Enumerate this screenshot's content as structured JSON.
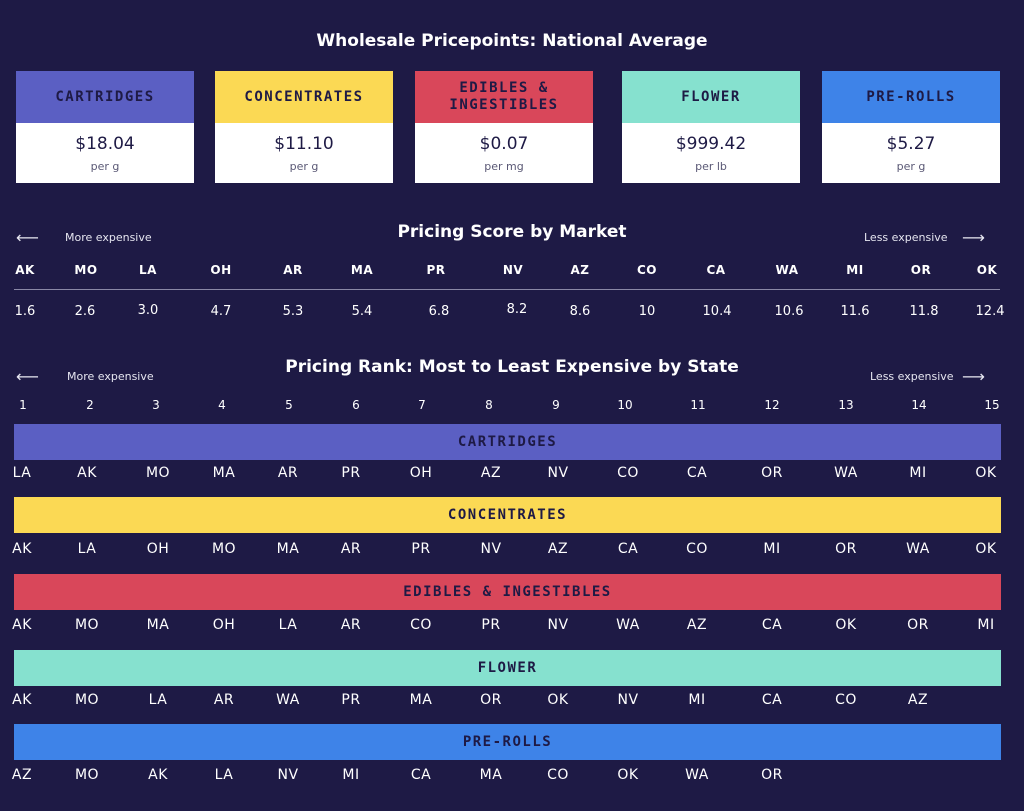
{
  "colors": {
    "background": "#1e1a45",
    "cartridges": "#5b5fc3",
    "concentrates": "#fbd954",
    "edibles": "#d9475a",
    "flower": "#86e1cf",
    "pre_rolls": "#3e83e8"
  },
  "header": {
    "title": "Wholesale Pricepoints: National Average"
  },
  "cards": [
    {
      "label": "CARTRIDGES",
      "price": "$18.04",
      "unit": "per g",
      "color": "#5b5fc3"
    },
    {
      "label": "CONCENTRATES",
      "price": "$11.10",
      "unit": "per g",
      "color": "#fbd954"
    },
    {
      "label": "EDIBLES &\nINGESTIBLES",
      "price": "$0.07",
      "unit": "per mg",
      "color": "#d9475a"
    },
    {
      "label": "FLOWER",
      "price": "$999.42",
      "unit": "per lb",
      "color": "#86e1cf"
    },
    {
      "label": "PRE-ROLLS",
      "price": "$5.27",
      "unit": "per g",
      "color": "#3e83e8"
    }
  ],
  "score": {
    "title": "Pricing Score by Market",
    "more_label": "More expensive",
    "less_label": "Less expensive",
    "markets": [
      {
        "code": "AK",
        "value": "1.6"
      },
      {
        "code": "MO",
        "value": "2.6"
      },
      {
        "code": "LA",
        "value": "3.0"
      },
      {
        "code": "OH",
        "value": "4.7"
      },
      {
        "code": "AR",
        "value": "5.3"
      },
      {
        "code": "MA",
        "value": "5.4"
      },
      {
        "code": "PR",
        "value": "6.8"
      },
      {
        "code": "NV",
        "value": "8.2"
      },
      {
        "code": "AZ",
        "value": "8.6"
      },
      {
        "code": "CO",
        "value": "10"
      },
      {
        "code": "CA",
        "value": "10.4"
      },
      {
        "code": "WA",
        "value": "10.6"
      },
      {
        "code": "MI",
        "value": "11.6"
      },
      {
        "code": "OR",
        "value": "11.8"
      },
      {
        "code": "OK",
        "value": "12.4"
      }
    ]
  },
  "rank": {
    "title": "Pricing Rank: Most to Least Expensive by State",
    "more_label": "More expensive",
    "less_label": "Less expensive",
    "numbers": [
      "1",
      "2",
      "3",
      "4",
      "5",
      "6",
      "7",
      "8",
      "9",
      "10",
      "11",
      "12",
      "13",
      "14",
      "15"
    ],
    "categories": [
      {
        "label": "CARTRIDGES",
        "color": "#5b5fc3",
        "states": [
          "LA",
          "AK",
          "MO",
          "MA",
          "AR",
          "PR",
          "OH",
          "AZ",
          "NV",
          "CO",
          "CA",
          "OR",
          "WA",
          "MI",
          "OK"
        ]
      },
      {
        "label": "CONCENTRATES",
        "color": "#fbd954",
        "states": [
          "AK",
          "LA",
          "OH",
          "MO",
          "MA",
          "AR",
          "PR",
          "NV",
          "AZ",
          "CA",
          "CO",
          "MI",
          "OR",
          "WA",
          "OK"
        ]
      },
      {
        "label": "EDIBLES & INGESTIBLES",
        "color": "#d9475a",
        "states": [
          "AK",
          "MO",
          "MA",
          "OH",
          "LA",
          "AR",
          "CO",
          "PR",
          "NV",
          "WA",
          "AZ",
          "CA",
          "OK",
          "OR",
          "MI"
        ]
      },
      {
        "label": "FLOWER",
        "color": "#86e1cf",
        "states": [
          "AK",
          "MO",
          "LA",
          "AR",
          "WA",
          "PR",
          "MA",
          "OR",
          "OK",
          "NV",
          "MI",
          "CA",
          "CO",
          "AZ"
        ]
      },
      {
        "label": "PRE-ROLLS",
        "color": "#3e83e8",
        "states": [
          "AZ",
          "MO",
          "AK",
          "LA",
          "NV",
          "MI",
          "CA",
          "MA",
          "CO",
          "OK",
          "WA",
          "OR"
        ]
      }
    ]
  }
}
